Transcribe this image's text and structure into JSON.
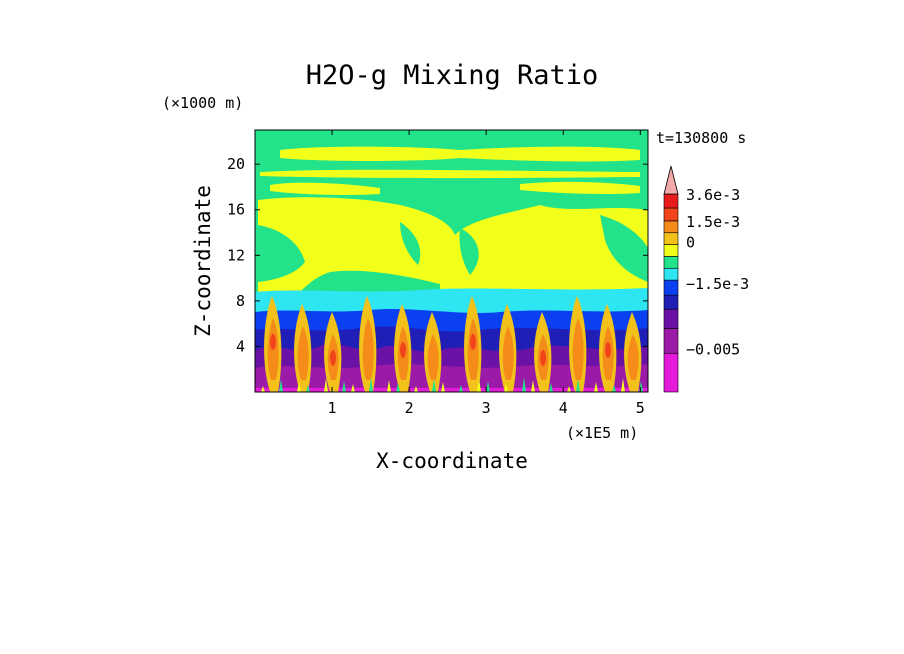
{
  "chart_data": {
    "type": "heatmap",
    "title": "H2O-g Mixing Ratio",
    "xlabel": "X-coordinate",
    "ylabel": "Z-coordinate",
    "x_unit": "(×1E5 m)",
    "y_unit": "(×1000 m)",
    "time_label": "t=130800 s",
    "xlim": [
      0,
      5.1
    ],
    "ylim": [
      0,
      23
    ],
    "x_ticks": [
      1,
      2,
      3,
      4,
      5
    ],
    "y_ticks": [
      4,
      8,
      12,
      16,
      20
    ],
    "colorbar": {
      "labels": [
        {
          "text": "3.6e-3",
          "value": 0.0036
        },
        {
          "text": "1.5e-3",
          "value": 0.0015
        },
        {
          "text": "0",
          "value": 0
        },
        {
          "text": "−1.5e-3",
          "value": -0.0015
        },
        {
          "text": "−0.005",
          "value": -0.005
        }
      ],
      "levels": [
        {
          "color": "#e61adb"
        },
        {
          "color": "#9b1aa8"
        },
        {
          "color": "#6a11a6"
        },
        {
          "color": "#1f1fb8"
        },
        {
          "color": "#0a40f0"
        },
        {
          "color": "#2ee6f2"
        },
        {
          "color": "#22e28a"
        },
        {
          "color": "#f2ff1a"
        },
        {
          "color": "#f2c21a"
        },
        {
          "color": "#f58c1a"
        },
        {
          "color": "#f2441a"
        },
        {
          "color": "#e81a1a"
        },
        {
          "color": "#f0a8a8"
        }
      ],
      "extend": "max"
    }
  }
}
